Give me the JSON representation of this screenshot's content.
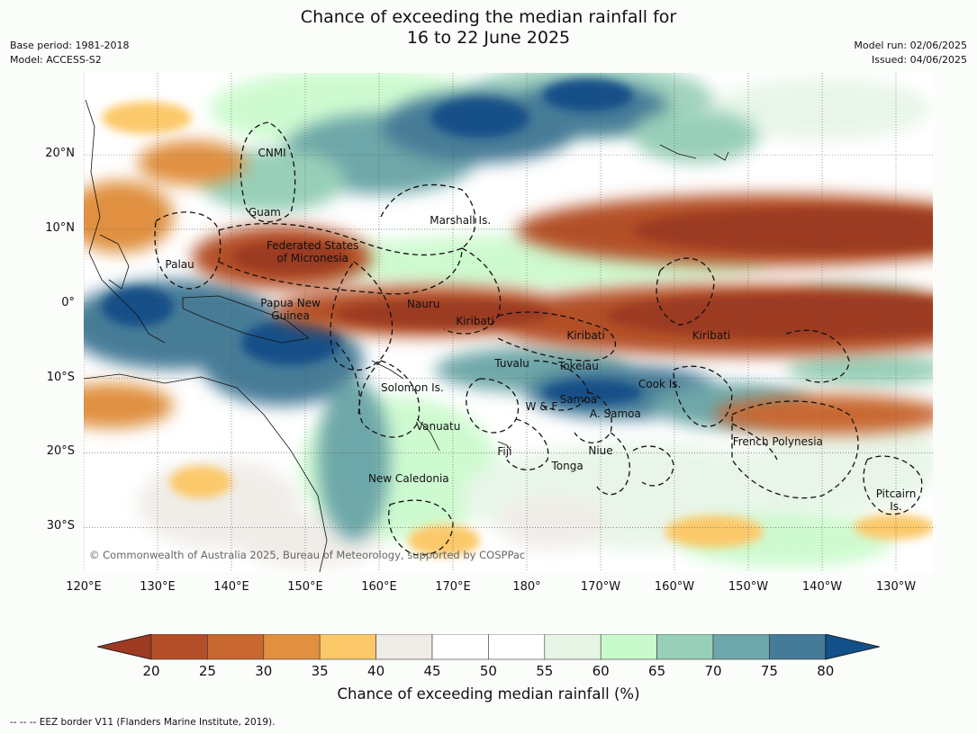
{
  "title": {
    "line1": "Chance of exceeding the median rainfall for",
    "line2": "16 to 22 June 2025"
  },
  "meta_left": {
    "base_period": "Base period: 1981-2018",
    "model": "Model: ACCESS-S2"
  },
  "meta_right": {
    "model_run": "Model run: 02/06/2025",
    "issued": "Issued: 04/06/2025"
  },
  "map": {
    "lon_range": [
      120,
      235
    ],
    "lat_range": [
      -36,
      31
    ],
    "lat_labels": [
      {
        "lat": 20,
        "text": "20°N"
      },
      {
        "lat": 10,
        "text": "10°N"
      },
      {
        "lat": 0,
        "text": "0°"
      },
      {
        "lat": -10,
        "text": "10°S"
      },
      {
        "lat": -20,
        "text": "20°S"
      },
      {
        "lat": -30,
        "text": "30°S"
      }
    ],
    "lon_labels": [
      {
        "lon": 120,
        "text": "120°E"
      },
      {
        "lon": 130,
        "text": "130°E"
      },
      {
        "lon": 140,
        "text": "140°E"
      },
      {
        "lon": 150,
        "text": "150°E"
      },
      {
        "lon": 160,
        "text": "160°E"
      },
      {
        "lon": 170,
        "text": "170°E"
      },
      {
        "lon": 180,
        "text": "180°"
      },
      {
        "lon": 190,
        "text": "170°W"
      },
      {
        "lon": 200,
        "text": "160°W"
      },
      {
        "lon": 210,
        "text": "150°W"
      },
      {
        "lon": 220,
        "text": "140°W"
      },
      {
        "lon": 230,
        "text": "130°W"
      }
    ],
    "regions": [
      {
        "name": "CNMI",
        "lon": 145.5,
        "lat": 20.2
      },
      {
        "name": "Guam",
        "lon": 144.5,
        "lat": 12.3
      },
      {
        "name": "Marshall Is.",
        "lon": 171,
        "lat": 11.2
      },
      {
        "name": "Federated States\nof Micronesia",
        "lon": 151,
        "lat": 7
      },
      {
        "name": "Palau",
        "lon": 133,
        "lat": 5.3
      },
      {
        "name": "Papua New\nGuinea",
        "lon": 148,
        "lat": -0.8
      },
      {
        "name": "Nauru",
        "lon": 166,
        "lat": 0
      },
      {
        "name": "Kiribati",
        "lon": 173,
        "lat": -2.3
      },
      {
        "name": "Kiribati",
        "lon": 188,
        "lat": -4.3
      },
      {
        "name": "Kiribati",
        "lon": 205,
        "lat": -4.3
      },
      {
        "name": "Tuvalu",
        "lon": 178,
        "lat": -8
      },
      {
        "name": "Tokelau",
        "lon": 187,
        "lat": -8.3
      },
      {
        "name": "Solomon Is.",
        "lon": 164.5,
        "lat": -11.3
      },
      {
        "name": "Cook Is.",
        "lon": 198,
        "lat": -10.8
      },
      {
        "name": "Samoa",
        "lon": 187,
        "lat": -12.8
      },
      {
        "name": "W & F",
        "lon": 182,
        "lat": -13.8
      },
      {
        "name": "A. Samoa",
        "lon": 192,
        "lat": -14.8
      },
      {
        "name": "Vanuatu",
        "lon": 168,
        "lat": -16.5
      },
      {
        "name": "French Polynesia",
        "lon": 214,
        "lat": -18.5
      },
      {
        "name": "Fiji",
        "lon": 177,
        "lat": -19.8
      },
      {
        "name": "Niue",
        "lon": 190,
        "lat": -19.7
      },
      {
        "name": "Tonga",
        "lon": 185.5,
        "lat": -21.7
      },
      {
        "name": "New Caledonia",
        "lon": 164,
        "lat": -23.4
      },
      {
        "name": "Pitcairn\nIs.",
        "lon": 230,
        "lat": -26.3
      }
    ],
    "copyright": "© Commonwealth of Australia 2025, Bureau of Meteorology, supported by COSPPac"
  },
  "colorbar": {
    "title": "Chance of exceeding median rainfall (%)",
    "ticks": [
      "20",
      "25",
      "30",
      "35",
      "40",
      "45",
      "50",
      "55",
      "60",
      "65",
      "70",
      "75",
      "80"
    ],
    "colors": [
      "#9c3a22",
      "#b34f28",
      "#c86830",
      "#e0903f",
      "#fcc96a",
      "#efebe6",
      "#ffffff",
      "#ffffff",
      "#e6f5e6",
      "#c9facb",
      "#98cfb8",
      "#6ea7a9",
      "#467b97",
      "#134f88"
    ]
  },
  "footer": "--  --  -- EEZ border V11 (Flanders Marine Institute, 2019)."
}
